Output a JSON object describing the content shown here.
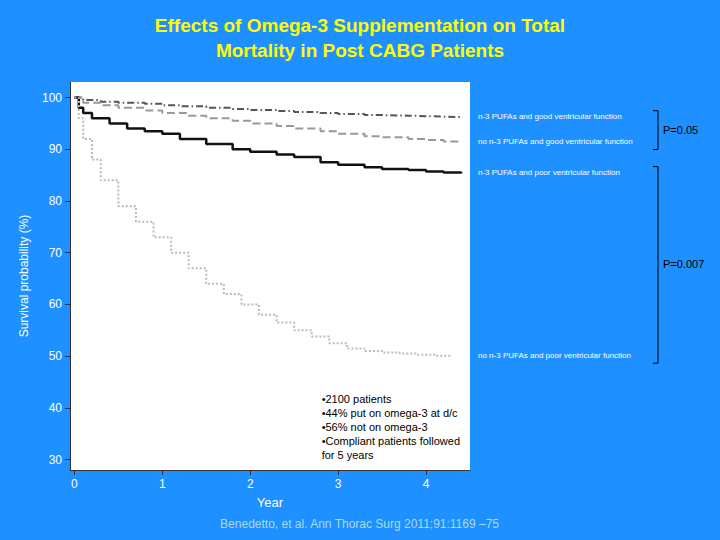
{
  "chart_data": {
    "type": "line",
    "title": [
      "Effects of Omega-3 Supplementation on Total",
      "Mortality in Post CABG Patients"
    ],
    "xlabel": "Year",
    "ylabel": "Survival probability (%)",
    "xlim": [
      -0.05,
      4.5
    ],
    "xticks": [
      0,
      1,
      2,
      3,
      4
    ],
    "ylim": [
      28,
      103
    ],
    "yticks": [
      30,
      40,
      50,
      60,
      70,
      80,
      90,
      100
    ],
    "grid": false,
    "series": [
      {
        "name": "n-3 PUFAs and good ventricular function",
        "color": "#555555",
        "line_style": "dashdot",
        "x": [
          0,
          0.1,
          0.3,
          0.5,
          0.8,
          1.0,
          1.2,
          1.5,
          1.8,
          2.0,
          2.3,
          2.5,
          2.8,
          3.0,
          3.3,
          3.5,
          3.8,
          4.0,
          4.2,
          4.4
        ],
        "values": [
          100,
          99.5,
          99.2,
          99.0,
          98.8,
          98.5,
          98.3,
          98.0,
          97.8,
          97.6,
          97.4,
          97.2,
          97.0,
          96.8,
          96.6,
          96.5,
          96.4,
          96.3,
          96.2,
          96.1
        ]
      },
      {
        "name": "no n-3 PUFAs and good ventricular function",
        "color": "#999999",
        "line_style": "dashed",
        "x": [
          0,
          0.1,
          0.3,
          0.5,
          0.8,
          1.0,
          1.3,
          1.5,
          1.8,
          2.0,
          2.3,
          2.5,
          2.8,
          3.0,
          3.3,
          3.5,
          3.8,
          4.0,
          4.2,
          4.4
        ],
        "values": [
          100,
          99.0,
          98.5,
          98.0,
          97.5,
          97.0,
          96.5,
          96.0,
          95.5,
          95.0,
          94.5,
          94.0,
          93.5,
          93.0,
          92.5,
          92.3,
          92.0,
          91.8,
          91.5,
          91.3
        ]
      },
      {
        "name": "n-3 PUFAs and poor ventricular function",
        "color": "#111111",
        "line_style": "solid",
        "x": [
          0,
          0.05,
          0.1,
          0.2,
          0.4,
          0.6,
          0.8,
          1.0,
          1.2,
          1.5,
          1.8,
          2.0,
          2.3,
          2.5,
          2.8,
          3.0,
          3.3,
          3.5,
          3.8,
          4.0,
          4.2,
          4.4
        ],
        "values": [
          100,
          98.0,
          97.0,
          96.0,
          95.0,
          94.0,
          93.5,
          93.0,
          92.0,
          91.0,
          90.0,
          89.5,
          89.0,
          88.5,
          87.5,
          87.0,
          86.5,
          86.2,
          86.0,
          85.7,
          85.5,
          85.3
        ]
      },
      {
        "name": "no n-3 PUFAs and poor ventricular function",
        "color": "#bbbbbb",
        "line_style": "dotted",
        "x": [
          0,
          0.05,
          0.1,
          0.2,
          0.3,
          0.5,
          0.7,
          0.9,
          1.1,
          1.3,
          1.5,
          1.7,
          1.9,
          2.1,
          2.3,
          2.5,
          2.7,
          2.9,
          3.1,
          3.3,
          3.5,
          3.7,
          3.9,
          4.1,
          4.3
        ],
        "values": [
          100,
          96.0,
          92.0,
          88.0,
          84.0,
          79.0,
          76.0,
          73.0,
          70.0,
          67.0,
          64.0,
          62.0,
          60.0,
          58.0,
          56.5,
          55.0,
          53.8,
          52.5,
          51.5,
          51.0,
          50.7,
          50.5,
          50.3,
          50.1,
          50.0
        ]
      }
    ],
    "comparisons": [
      {
        "label": "P=0.05",
        "series": [
          "n-3 PUFAs and good ventricular function",
          "no n-3 PUFAs and good ventricular function"
        ]
      },
      {
        "label": "P=0.007",
        "series": [
          "n-3 PUFAs and poor ventricular function",
          "no n-3 PUFAs and poor ventricular function"
        ]
      }
    ],
    "notes": [
      "•2100 patients",
      "•44% put on omega-3 at d/c",
      "•56% not on omega-3",
      "•Compliant patients followed",
      "for 5 years"
    ],
    "footnote": "Benedetto, et al. Ann Thorac Surg 2011;91:1169 –75"
  }
}
